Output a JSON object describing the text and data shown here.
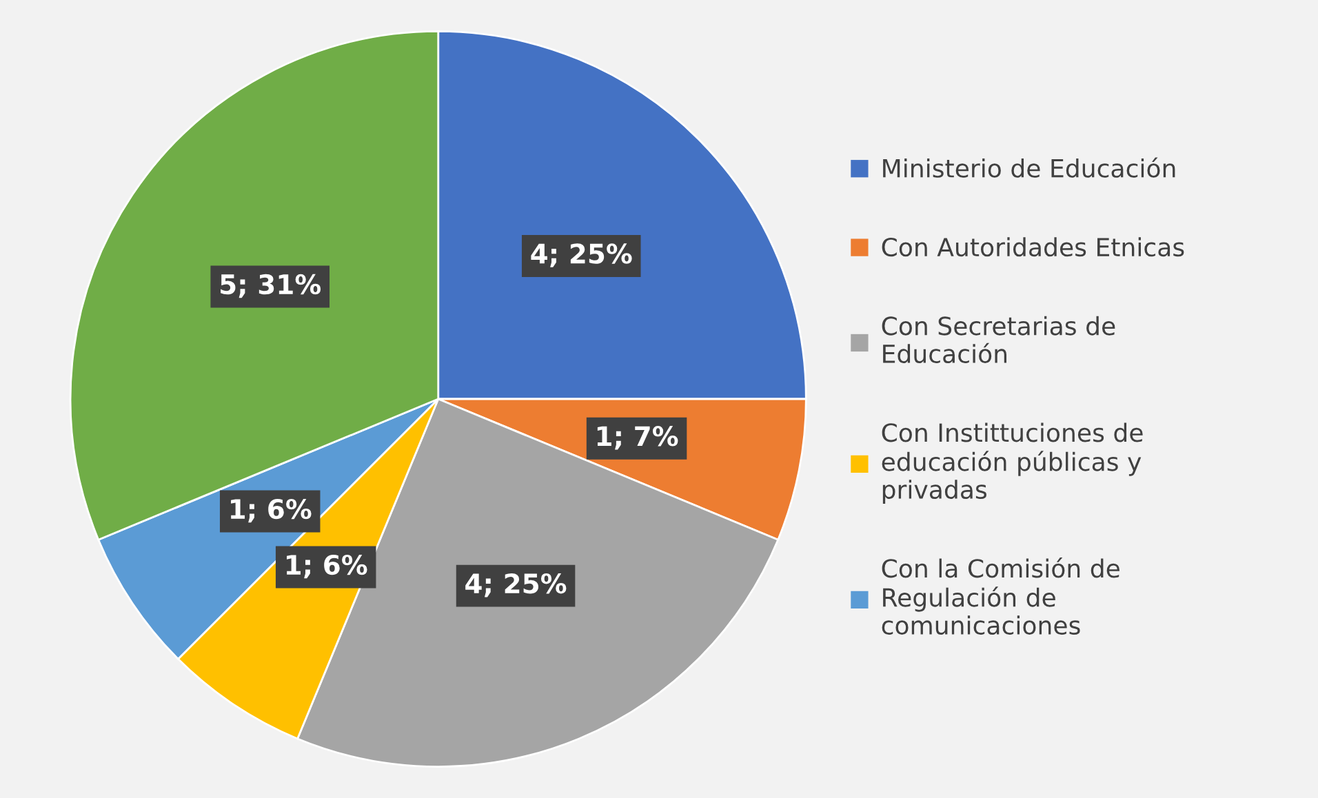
{
  "chart_data": {
    "type": "pie",
    "categories": [
      "Ministerio de Educación",
      "Con Autoridades Etnicas",
      "Con Secretarias de Educación",
      "Con Instittuciones de educación públicas y privadas",
      "Con la Comisión de Regulación de comunicaciones",
      null
    ],
    "values": [
      4,
      1,
      4,
      1,
      1,
      5
    ],
    "value_labels": [
      "4; 25%",
      "1; 7%",
      "4; 25%",
      "1; 6%",
      "1; 6%",
      "5; 31%"
    ],
    "colors": [
      "#4472c4",
      "#ed7d31",
      "#a5a5a5",
      "#ffc000",
      "#5b9bd5",
      "#70ad47"
    ],
    "legend": "right"
  }
}
